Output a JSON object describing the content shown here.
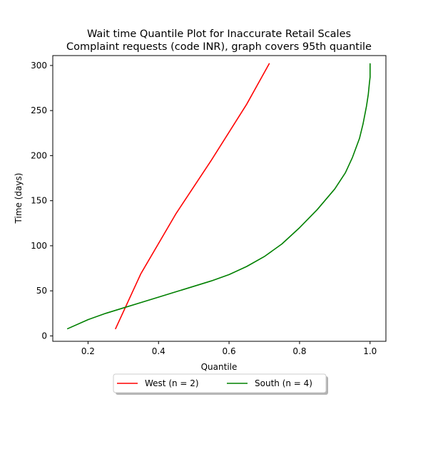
{
  "chart_data": {
    "type": "line",
    "title": "Wait time Quantile Plot for Inaccurate Retail Scales\nComplaint  requests (code INR), graph covers 95th quantile",
    "xlabel": "Quantile",
    "ylabel": "Time (days)",
    "xlim": [
      0.1,
      1.045
    ],
    "ylim": [
      -6,
      311
    ],
    "xticks": [
      0.2,
      0.4,
      0.6,
      0.8,
      1.0
    ],
    "xtick_labels": [
      "0.2",
      "0.4",
      "0.6",
      "0.8",
      "1.0"
    ],
    "yticks": [
      0,
      50,
      100,
      150,
      200,
      250,
      300
    ],
    "ytick_labels": [
      "0",
      "50",
      "100",
      "150",
      "200",
      "250",
      "300"
    ],
    "grid": false,
    "legend_position": "below plot, centered, 2 columns",
    "series": [
      {
        "name": "West (n = 2)",
        "color": "#ff0000",
        "x": [
          0.278,
          0.35,
          0.45,
          0.55,
          0.65,
          0.714
        ],
        "y": [
          8,
          69,
          136,
          195,
          257,
          302
        ]
      },
      {
        "name": "South (n = 4)",
        "color": "#008000",
        "x": [
          0.142,
          0.2,
          0.25,
          0.3,
          0.35,
          0.4,
          0.45,
          0.5,
          0.55,
          0.6,
          0.65,
          0.7,
          0.75,
          0.8,
          0.85,
          0.9,
          0.93,
          0.95,
          0.97,
          0.98,
          0.99,
          0.995,
          0.998,
          1.0,
          1.0,
          1.0
        ],
        "y": [
          8,
          18,
          25,
          31,
          37,
          43,
          49,
          55,
          61,
          68,
          77,
          88,
          102,
          120,
          140,
          163,
          181,
          198,
          219,
          235,
          255,
          268,
          280,
          287,
          295,
          302
        ]
      }
    ]
  }
}
